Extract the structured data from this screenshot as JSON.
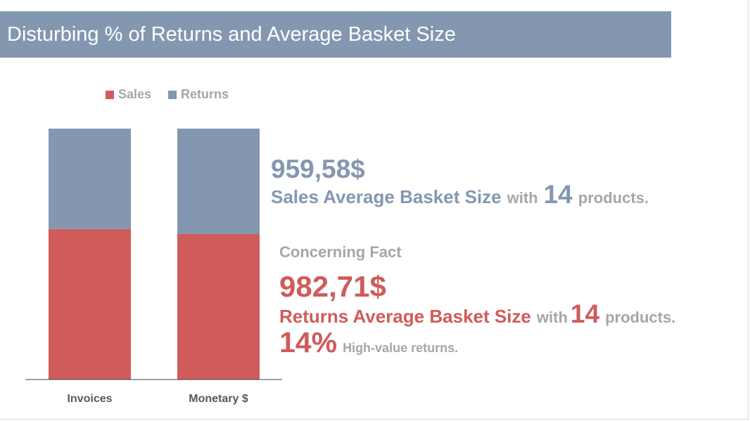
{
  "title": "Disturbing % of Returns and Average Basket Size",
  "colors": {
    "sales": "#d05b5b",
    "returns": "#8497b0",
    "header_bg": "#8497b0",
    "muted_text": "#a6a6a6"
  },
  "chart_data": {
    "type": "bar",
    "stacked": true,
    "percent_stacked": true,
    "categories": [
      "Invoices",
      "Monetary $"
    ],
    "series": [
      {
        "name": "Sales",
        "color": "#d05b5b",
        "values": [
          60,
          58
        ]
      },
      {
        "name": "Returns",
        "color": "#8497b0",
        "values": [
          40,
          42
        ]
      }
    ],
    "ylim": [
      0,
      100
    ],
    "legend": "top",
    "grid": false
  },
  "kpis": {
    "sales": {
      "amount": "959,58$",
      "label": "Sales Average Basket Size",
      "connector": "with",
      "count": "14",
      "suffix": "products."
    },
    "concern": {
      "heading": "Concerning Fact",
      "amount": "982,71$",
      "label": "Returns Average Basket Size",
      "connector": "with",
      "count": "14",
      "suffix": "products.",
      "percent": "14%",
      "percent_label": "High-value returns."
    }
  }
}
